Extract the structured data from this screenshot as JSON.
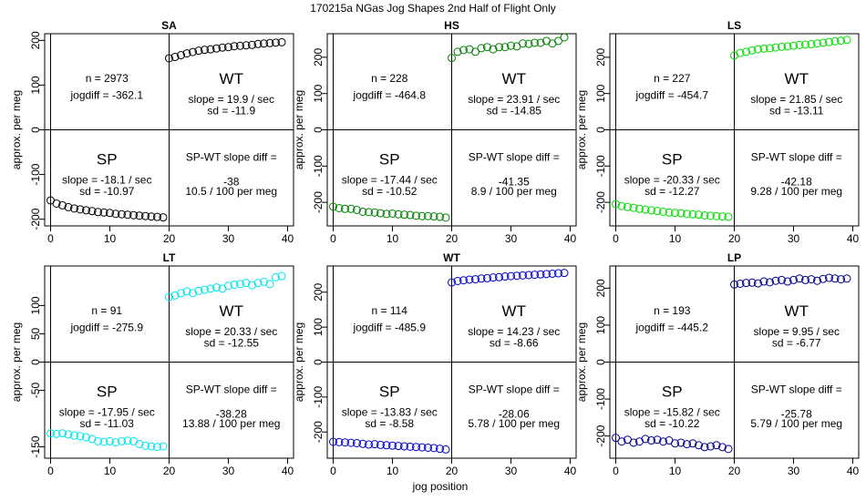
{
  "figure": {
    "title": "170215a   NGas Jog Shapes 2nd Half of Flight Only",
    "xlabel": "jog position",
    "ylabel": "approx. per meg",
    "sp_label": "SP",
    "wt_label": "WT",
    "diff_label": "SP-WT slope diff ="
  },
  "chart_data": [
    {
      "type": "scatter",
      "title": "SA",
      "color": "#000000",
      "xlim": [
        -1,
        41
      ],
      "ylim": [
        -215,
        215
      ],
      "xticks": [
        0,
        10,
        20,
        30,
        40
      ],
      "yticks": [
        -200,
        -100,
        0,
        100,
        200
      ],
      "n_text": "n = 2973",
      "jogdiff_text": "jogdiff = -362.1",
      "wt_slope_text": "slope = 19.9 / sec",
      "wt_sd_text": "sd = -11.9",
      "sp_slope_text": "slope = -18.1 / sec",
      "sp_sd_text": "sd = -10.97",
      "diff_value_text": "-38",
      "diff_rate_text": "10.5 / 100 per meg",
      "sp_values": [
        -158,
        -165,
        -169,
        -173,
        -176,
        -178,
        -180,
        -182,
        -184,
        -185,
        -186,
        -188,
        -189,
        -190,
        -191,
        -192,
        -193,
        -194,
        -195,
        -196
      ],
      "wt_values": [
        160,
        163,
        167,
        171,
        174,
        177,
        179,
        180,
        182,
        184,
        185,
        187,
        188,
        189,
        190,
        192,
        193,
        194,
        195,
        196
      ]
    },
    {
      "type": "scatter",
      "title": "HS",
      "color": "#008000",
      "xlim": [
        -1,
        41
      ],
      "ylim": [
        -265,
        265
      ],
      "xticks": [
        0,
        10,
        20,
        30,
        40
      ],
      "yticks": [
        -200,
        -100,
        0,
        100,
        200
      ],
      "n_text": "n = 228",
      "jogdiff_text": "jogdiff = -464.8",
      "wt_slope_text": "slope = 23.91 / sec",
      "wt_sd_text": "sd = -14.85",
      "sp_slope_text": "slope = -17.44 / sec",
      "sp_sd_text": "sd = -10.52",
      "diff_value_text": "-41.35",
      "diff_rate_text": "8.9 / 100 per meg",
      "sp_values": [
        -212,
        -216,
        -218,
        -218,
        -221,
        -226,
        -227,
        -228,
        -230,
        -232,
        -231,
        -233,
        -234,
        -235,
        -237,
        -238,
        -238,
        -239,
        -240,
        -242
      ],
      "wt_values": [
        198,
        215,
        220,
        222,
        215,
        225,
        228,
        222,
        228,
        228,
        232,
        230,
        238,
        237,
        240,
        240,
        245,
        238,
        245,
        255
      ]
    },
    {
      "type": "scatter",
      "title": "LS",
      "color": "#00dd00",
      "xlim": [
        -1,
        41
      ],
      "ylim": [
        -265,
        265
      ],
      "xticks": [
        0,
        10,
        20,
        30,
        40
      ],
      "yticks": [
        -200,
        -100,
        0,
        100,
        200
      ],
      "n_text": "n = 227",
      "jogdiff_text": "jogdiff = -454.7",
      "wt_slope_text": "slope = 21.85 / sec",
      "wt_sd_text": "sd = -13.11",
      "sp_slope_text": "slope = -20.33 / sec",
      "sp_sd_text": "sd = -12.27",
      "diff_value_text": "-42.18",
      "diff_rate_text": "9.28 / 100 per meg",
      "sp_values": [
        -205,
        -210,
        -213,
        -215,
        -218,
        -220,
        -222,
        -224,
        -226,
        -228,
        -229,
        -230,
        -232,
        -233,
        -234,
        -236,
        -237,
        -238,
        -239,
        -240
      ],
      "wt_values": [
        205,
        212,
        215,
        219,
        222,
        224,
        225,
        227,
        229,
        230,
        232,
        234,
        235,
        236,
        238,
        240,
        242,
        244,
        246,
        248
      ]
    },
    {
      "type": "scatter",
      "title": "LT",
      "color": "#00e5ee",
      "xlim": [
        -1,
        41
      ],
      "ylim": [
        -170,
        170
      ],
      "xticks": [
        0,
        10,
        20,
        30,
        40
      ],
      "yticks": [
        -150,
        -50,
        0,
        50,
        100
      ],
      "n_text": "n = 91",
      "jogdiff_text": "jogdiff = -275.9",
      "wt_slope_text": "slope = 20.33 / sec",
      "wt_sd_text": "sd = -12.55",
      "sp_slope_text": "slope = -17.95 / sec",
      "sp_sd_text": "sd = -11.03",
      "diff_value_text": "-38.28",
      "diff_rate_text": "13.88 / 100 per meg",
      "sp_values": [
        -126,
        -127,
        -126,
        -128,
        -130,
        -131,
        -133,
        -136,
        -140,
        -141,
        -140,
        -142,
        -140,
        -139,
        -140,
        -145,
        -148,
        -149,
        -150,
        -149
      ],
      "wt_values": [
        115,
        118,
        122,
        125,
        122,
        126,
        128,
        130,
        132,
        130,
        135,
        137,
        138,
        140,
        136,
        140,
        142,
        138,
        150,
        152
      ]
    },
    {
      "type": "scatter",
      "title": "WT",
      "color": "#0000cd",
      "xlim": [
        -1,
        41
      ],
      "ylim": [
        -275,
        275
      ],
      "xticks": [
        0,
        10,
        20,
        30,
        40
      ],
      "yticks": [
        -200,
        -100,
        0,
        100,
        200
      ],
      "n_text": "n = 114",
      "jogdiff_text": "jogdiff = -485.9",
      "wt_slope_text": "slope = 14.23 / sec",
      "wt_sd_text": "sd = -8.66",
      "sp_slope_text": "slope = -13.83 / sec",
      "sp_sd_text": "sd = -8.58",
      "diff_value_text": "-28.06",
      "diff_rate_text": "5.78 / 100 per meg",
      "sp_values": [
        -228,
        -229,
        -230,
        -231,
        -232,
        -234,
        -236,
        -235,
        -237,
        -238,
        -239,
        -240,
        -241,
        -242,
        -243,
        -244,
        -245,
        -246,
        -248,
        -250
      ],
      "wt_values": [
        228,
        232,
        234,
        236,
        237,
        239,
        240,
        242,
        243,
        245,
        246,
        247,
        248,
        249,
        250,
        251,
        252,
        253,
        254,
        255
      ]
    },
    {
      "type": "scatter",
      "title": "LP",
      "color": "#00008b",
      "xlim": [
        -1,
        41
      ],
      "ylim": [
        -260,
        260
      ],
      "xticks": [
        0,
        10,
        20,
        30,
        40
      ],
      "yticks": [
        -200,
        -100,
        0,
        100,
        200
      ],
      "n_text": "n = 193",
      "jogdiff_text": "jogdiff = -445.2",
      "wt_slope_text": "slope = 9.95 / sec",
      "wt_sd_text": "sd = -6.77",
      "sp_slope_text": "slope = -15.82 / sec",
      "sp_sd_text": "sd = -10.22",
      "diff_value_text": "-25.78",
      "diff_rate_text": "5.79 / 100 per meg",
      "sp_values": [
        -205,
        -215,
        -210,
        -218,
        -215,
        -208,
        -212,
        -210,
        -215,
        -212,
        -220,
        -218,
        -222,
        -220,
        -225,
        -230,
        -228,
        -225,
        -230,
        -235
      ],
      "wt_values": [
        210,
        212,
        214,
        215,
        213,
        218,
        216,
        220,
        222,
        218,
        222,
        226,
        222,
        224,
        220,
        225,
        228,
        226,
        224,
        226
      ]
    }
  ]
}
